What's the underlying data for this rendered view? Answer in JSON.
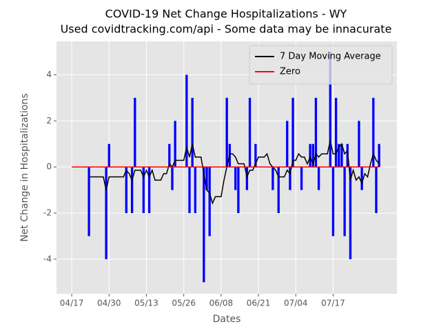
{
  "chart_data": {
    "type": "combo",
    "title": "COVID-19 Net Change Hospitalizations - WY",
    "subtitle": "Used covidtracking.com/api - Some data may be innacurate",
    "xlabel": "Dates",
    "ylabel": "Net Change in Hospitalizations",
    "x": [
      0,
      1,
      2,
      3,
      4,
      5,
      6,
      7,
      8,
      9,
      10,
      11,
      12,
      13,
      14,
      15,
      16,
      17,
      18,
      19,
      20,
      21,
      22,
      23,
      24,
      25,
      26,
      27,
      28,
      29,
      30,
      31,
      32,
      33,
      34,
      35,
      36,
      37,
      38,
      39,
      40,
      41,
      42,
      43,
      44,
      45,
      46,
      47,
      48,
      49,
      50,
      51,
      52,
      53,
      54,
      55,
      56,
      57,
      58,
      59,
      60,
      61,
      62,
      63,
      64,
      65,
      66,
      67,
      68,
      69,
      70,
      71,
      72,
      73,
      74,
      75,
      76,
      77,
      78,
      79,
      80,
      81,
      82,
      83,
      84,
      85,
      86,
      87,
      88,
      89,
      90,
      91,
      92,
      93,
      94,
      95,
      96,
      97,
      98,
      99,
      100,
      101,
      102,
      103,
      104,
      105,
      106,
      107
    ],
    "xlim": [
      -5.3,
      113.2
    ],
    "xticks": [
      {
        "value": 0,
        "label": "04/17"
      },
      {
        "value": 13,
        "label": "04/30"
      },
      {
        "value": 26,
        "label": "05/13"
      },
      {
        "value": 39,
        "label": "05/26"
      },
      {
        "value": 52,
        "label": "06/08"
      },
      {
        "value": 65,
        "label": "06/21"
      },
      {
        "value": 78,
        "label": "07/04"
      },
      {
        "value": 91,
        "label": "07/17"
      }
    ],
    "ylim": [
      -5.5,
      5.45
    ],
    "yticks": [
      -4,
      -2,
      0,
      2,
      4
    ],
    "grid": true,
    "legend": "upper right",
    "series": [
      {
        "type": "bar",
        "color": "#0000ff",
        "values": [
          0,
          0,
          0,
          0,
          0,
          0,
          -3,
          0,
          0,
          0,
          0,
          0,
          -4,
          1,
          0,
          0,
          0,
          0,
          0,
          -2,
          0,
          -2,
          3,
          0,
          0,
          -2,
          0,
          -2,
          0,
          0,
          0,
          0,
          0,
          0,
          1,
          -1,
          2,
          0,
          0,
          0,
          4,
          -2,
          3,
          -2,
          0,
          0,
          -5,
          -1,
          -3,
          0,
          0,
          0,
          0,
          0,
          3,
          1,
          0,
          -1,
          -2,
          0,
          0,
          -1,
          3,
          0,
          1,
          0,
          0,
          0,
          0,
          0,
          -1,
          0,
          -2,
          0,
          0,
          2,
          -1,
          3,
          0,
          0,
          -1,
          0,
          0,
          1,
          1,
          3,
          -1,
          0,
          0,
          0,
          5,
          -3,
          3,
          1,
          1,
          -3,
          1,
          -4,
          0,
          0,
          2,
          -1,
          0,
          0,
          0,
          3,
          -2,
          1
        ]
      },
      {
        "type": "line",
        "name": "7 Day Moving Average",
        "color": "#000000",
        "values": [
          null,
          null,
          null,
          null,
          null,
          null,
          -0.43,
          -0.43,
          -0.43,
          -0.43,
          -0.43,
          -0.43,
          -1,
          -0.43,
          -0.43,
          -0.43,
          -0.43,
          -0.43,
          -0.43,
          -0.14,
          -0.29,
          -0.57,
          -0.14,
          -0.14,
          -0.14,
          -0.43,
          -0.14,
          -0.43,
          -0.14,
          -0.57,
          -0.57,
          -0.57,
          -0.29,
          -0.29,
          0.14,
          0,
          0.29,
          0.29,
          0.29,
          0.29,
          0.86,
          0.43,
          1,
          0.43,
          0.43,
          0.43,
          -0.29,
          -1,
          -1.14,
          -1.57,
          -1.29,
          -1.29,
          -1.29,
          -0.57,
          0,
          0.57,
          0.57,
          0.43,
          0.14,
          0.14,
          0.14,
          -0.43,
          -0.14,
          -0.14,
          0.14,
          0.43,
          0.43,
          0.43,
          0.57,
          0.14,
          0,
          -0.14,
          -0.43,
          -0.43,
          -0.43,
          -0.14,
          -0.29,
          0.29,
          0.29,
          0.57,
          0.43,
          0.43,
          0.14,
          0.43,
          0.14,
          0.57,
          0.43,
          0.57,
          0.57,
          0.57,
          1.14,
          0.57,
          0.57,
          0.86,
          1,
          0.57,
          0.71,
          -0.57,
          -0.14,
          -0.57,
          -0.43,
          -0.71,
          -0.29,
          -0.43,
          0.14,
          0.57,
          0.29,
          0.14
        ]
      },
      {
        "type": "line",
        "name": "Zero",
        "color": "#ff0000",
        "x": [
          0,
          107
        ],
        "values": [
          0,
          0
        ]
      }
    ]
  }
}
